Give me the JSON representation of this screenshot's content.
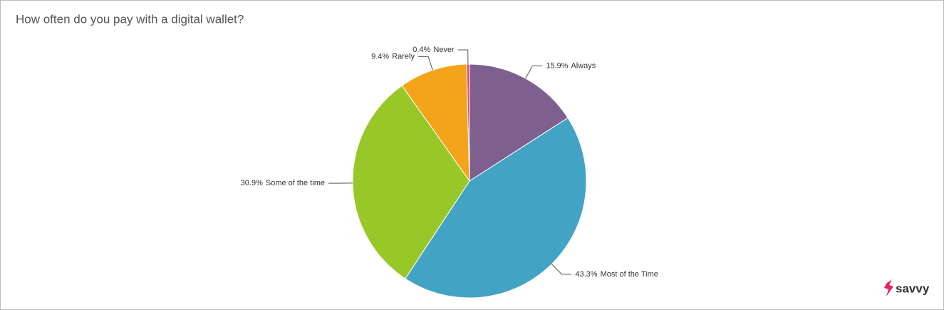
{
  "chart_data": {
    "type": "pie",
    "title": "How often do you pay with a digital wallet?",
    "categories": [
      "Always",
      "Most of the Time",
      "Some of the time",
      "Rarely",
      "Never"
    ],
    "values": [
      15.9,
      43.3,
      30.9,
      9.4,
      0.4
    ],
    "value_labels": [
      "15.9%",
      "43.3%",
      "30.9%",
      "9.4%",
      "0.4%"
    ],
    "colors": [
      "#7e5f8e",
      "#42a3c4",
      "#97c828",
      "#f4a41b",
      "#e84a6e"
    ]
  },
  "brand": "savvy"
}
